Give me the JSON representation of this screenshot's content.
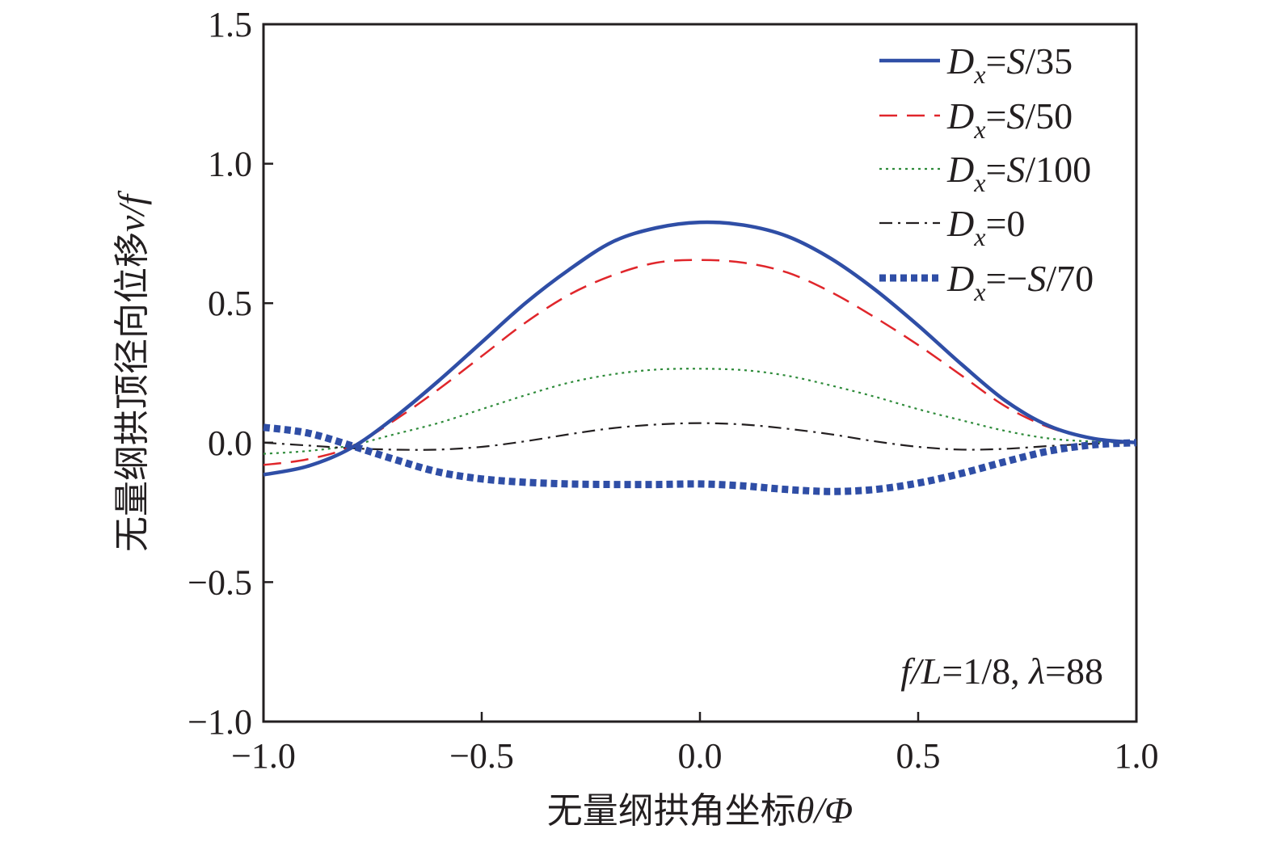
{
  "chart_data": {
    "type": "line",
    "xlabel_prefix": "无量纲拱角坐标",
    "xlabel_var": "θ/Φ",
    "ylabel_prefix": "无量纲拱顶径向位移",
    "ylabel_var": "v/f",
    "xlim": [
      -1.0,
      1.0
    ],
    "ylim": [
      -1.0,
      1.5
    ],
    "xticks": [
      -1.0,
      -0.5,
      0.0,
      0.5,
      1.0
    ],
    "xtick_labels": [
      "−1.0",
      "−0.5",
      "0.0",
      "0.5",
      "1.0"
    ],
    "yticks": [
      -1.0,
      -0.5,
      0.0,
      0.5,
      1.0,
      1.5
    ],
    "ytick_labels": [
      "−1.0",
      "−0.5",
      "0.0",
      "0.5",
      "1.0",
      "1.5"
    ],
    "grid": false,
    "legend_position": "top-right",
    "annotation": {
      "part1_var": "f/L",
      "part1_val": "=1/8, ",
      "part2_var": "λ",
      "part2_val": "=88"
    },
    "x": [
      -1.0,
      -0.9,
      -0.8,
      -0.7,
      -0.6,
      -0.5,
      -0.4,
      -0.3,
      -0.2,
      -0.1,
      0.0,
      0.1,
      0.2,
      0.3,
      0.4,
      0.5,
      0.6,
      0.7,
      0.8,
      0.9,
      1.0
    ],
    "series": [
      {
        "legend_var": "D",
        "legend_sub": "x",
        "legend_rest": "=S/35",
        "color": "#2f4ea6",
        "style": "solid",
        "values": [
          -0.115,
          -0.085,
          -0.02,
          0.09,
          0.22,
          0.36,
          0.5,
          0.62,
          0.72,
          0.77,
          0.79,
          0.78,
          0.74,
          0.66,
          0.55,
          0.42,
          0.28,
          0.15,
          0.06,
          0.015,
          0.0
        ]
      },
      {
        "legend_var": "D",
        "legend_sub": "x",
        "legend_rest": "=S/50",
        "color": "#e0262b",
        "style": "dashed",
        "values": [
          -0.08,
          -0.06,
          -0.015,
          0.08,
          0.19,
          0.31,
          0.43,
          0.53,
          0.6,
          0.645,
          0.655,
          0.645,
          0.61,
          0.54,
          0.45,
          0.35,
          0.24,
          0.13,
          0.055,
          0.015,
          0.0
        ]
      },
      {
        "legend_var": "D",
        "legend_sub": "x",
        "legend_rest": "=S/100",
        "color": "#2e8b3a",
        "style": "dotted",
        "values": [
          -0.04,
          -0.03,
          -0.01,
          0.03,
          0.07,
          0.12,
          0.17,
          0.215,
          0.245,
          0.262,
          0.265,
          0.26,
          0.24,
          0.205,
          0.165,
          0.12,
          0.08,
          0.042,
          0.015,
          0.004,
          0.0
        ]
      },
      {
        "legend_var": "D",
        "legend_sub": "x",
        "legend_rest": "=0",
        "color": "#231f20",
        "style": "dashdot",
        "values": [
          0.0,
          -0.01,
          -0.02,
          -0.025,
          -0.025,
          -0.015,
          0.005,
          0.03,
          0.052,
          0.065,
          0.07,
          0.065,
          0.05,
          0.03,
          0.005,
          -0.015,
          -0.025,
          -0.022,
          -0.012,
          -0.004,
          0.0
        ]
      },
      {
        "legend_var": "D",
        "legend_sub": "x",
        "legend_rest": "=−S/70",
        "color": "#2f4ea6",
        "style": "thick-dotted",
        "values": [
          0.055,
          0.035,
          -0.01,
          -0.06,
          -0.105,
          -0.13,
          -0.142,
          -0.148,
          -0.15,
          -0.15,
          -0.148,
          -0.155,
          -0.168,
          -0.175,
          -0.168,
          -0.145,
          -0.11,
          -0.068,
          -0.03,
          -0.008,
          0.0
        ]
      }
    ]
  }
}
